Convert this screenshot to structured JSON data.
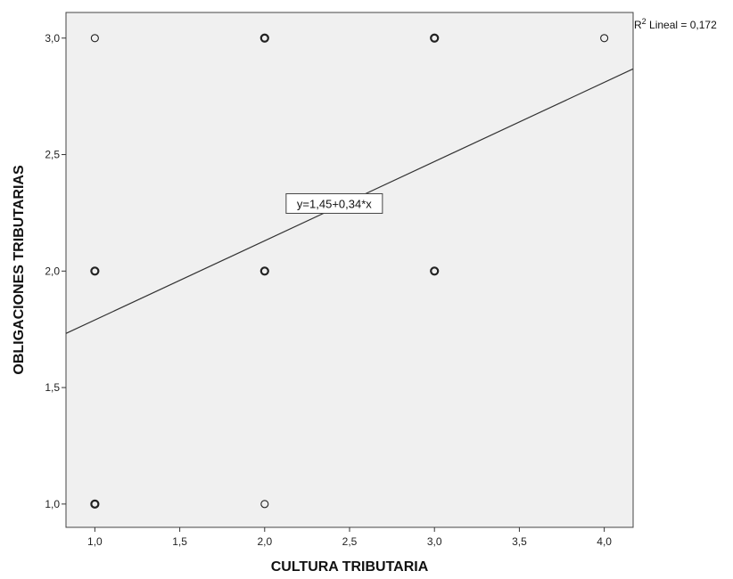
{
  "chart_data": {
    "type": "scatter",
    "xlabel": "CULTURA TRIBUTARIA",
    "ylabel": "OBLIGACIONES TRIBUTARIAS",
    "xlim": [
      0.83,
      4.17
    ],
    "ylim": [
      0.9,
      3.11
    ],
    "x_ticks": [
      1.0,
      1.5,
      2.0,
      2.5,
      3.0,
      3.5,
      4.0
    ],
    "x_tick_labels": [
      "1,0",
      "1,5",
      "2,0",
      "2,5",
      "3,0",
      "3,5",
      "4,0"
    ],
    "y_ticks": [
      1.0,
      1.5,
      2.0,
      2.5,
      3.0
    ],
    "y_tick_labels": [
      "1,0",
      "1,5",
      "2,0",
      "2,5",
      "3,0"
    ],
    "points": [
      {
        "x": 1,
        "y": 3,
        "bold": false
      },
      {
        "x": 2,
        "y": 3,
        "bold": true
      },
      {
        "x": 3,
        "y": 3,
        "bold": true
      },
      {
        "x": 4,
        "y": 3,
        "bold": false
      },
      {
        "x": 1,
        "y": 2,
        "bold": true
      },
      {
        "x": 2,
        "y": 2,
        "bold": true
      },
      {
        "x": 3,
        "y": 2,
        "bold": true
      },
      {
        "x": 1,
        "y": 1,
        "bold": true
      },
      {
        "x": 2,
        "y": 1,
        "bold": false
      }
    ],
    "fit_line": {
      "intercept": 1.45,
      "slope": 0.34
    },
    "equation_label": "y=1,45+0,34*x",
    "r2_prefix": "R",
    "r2_sup": "2",
    "r2_suffix": " Lineal = 0,172",
    "grid": false,
    "plot_background": "#f0f0f0",
    "marker_color": "#222222",
    "line_color": "#333333"
  }
}
